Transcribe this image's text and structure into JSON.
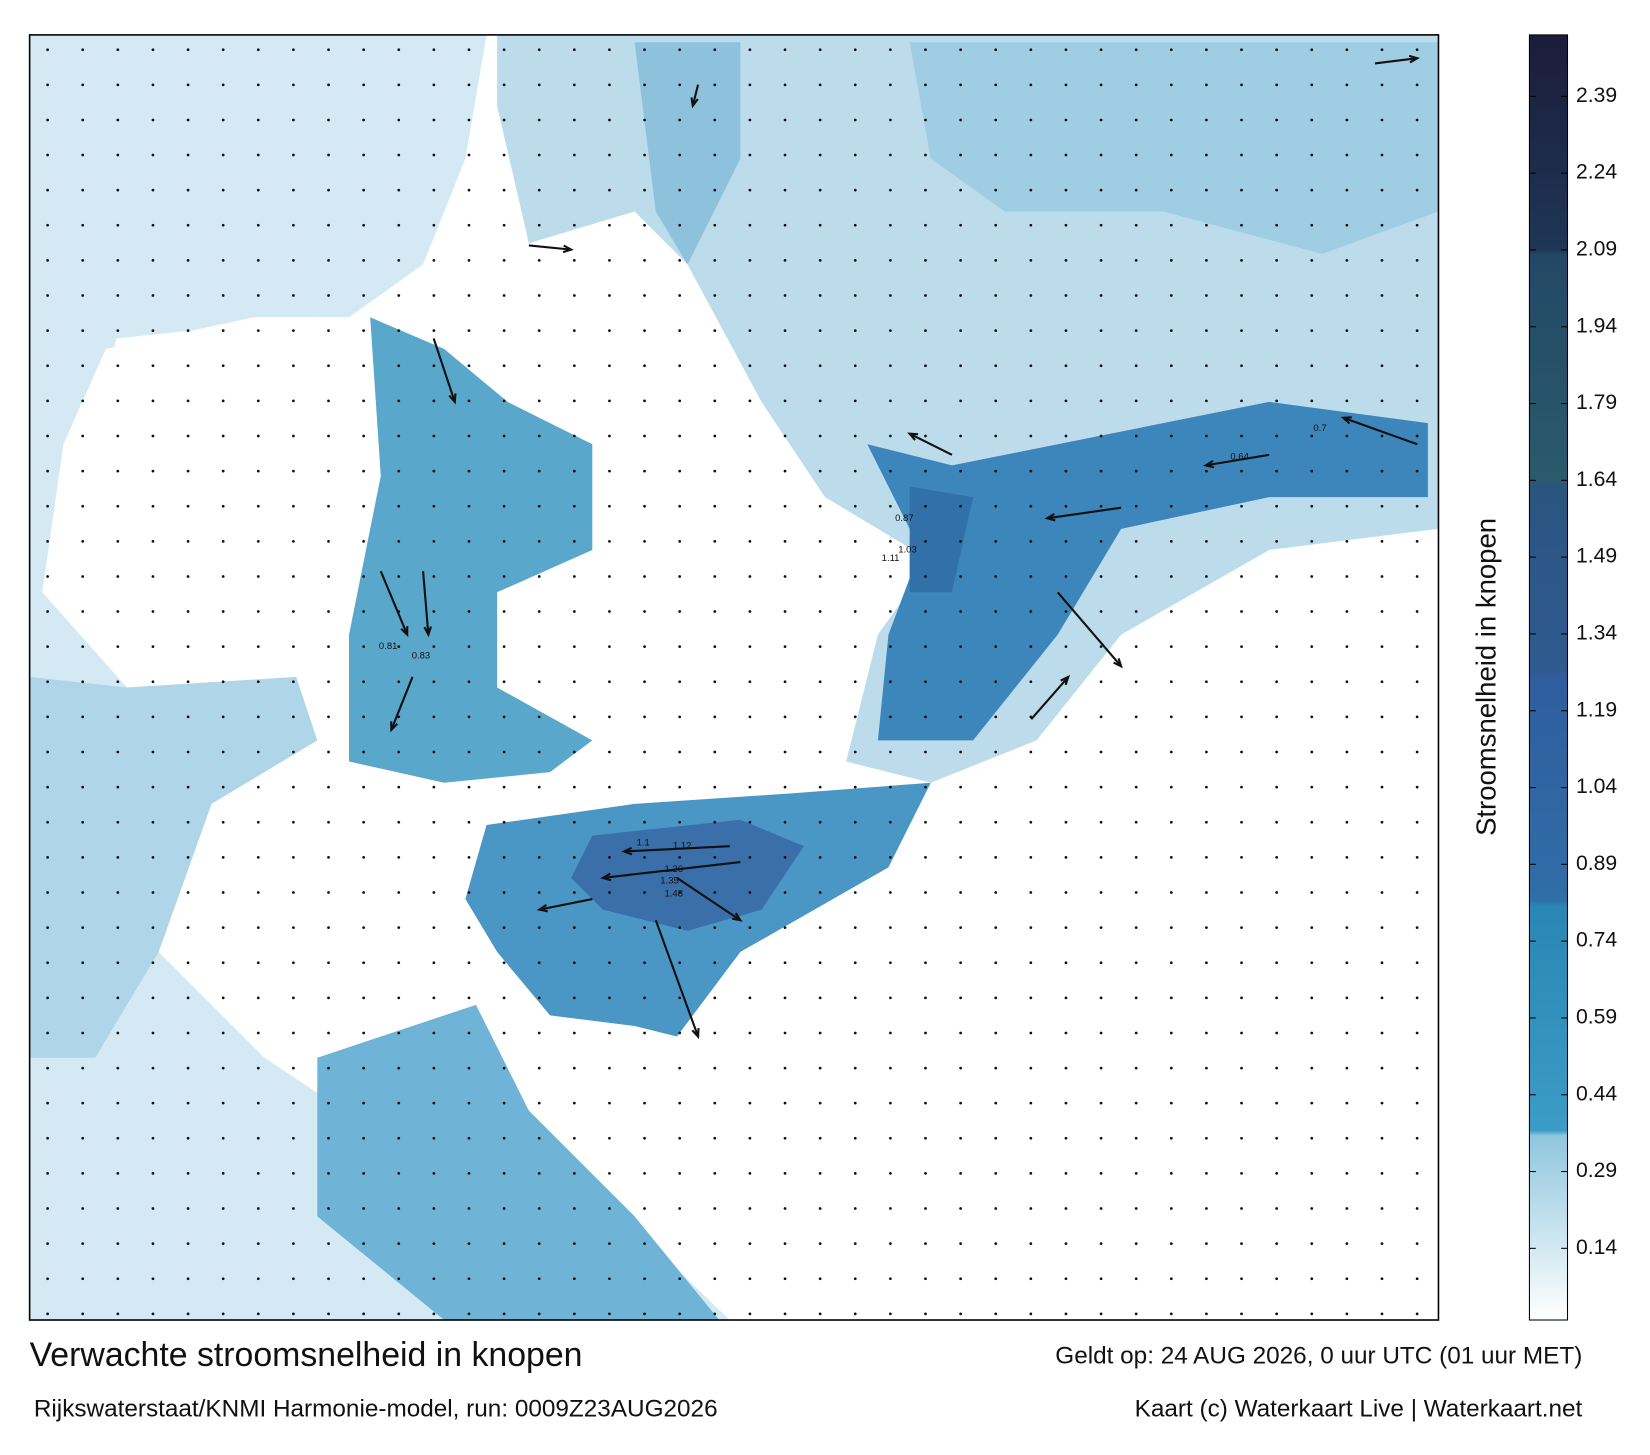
{
  "map": {
    "title": "Verwachte stroomsnelheid in knopen",
    "subtitle": "Rijkswaterstaat/KNMI Harmonie-model, run: 0009Z23AUG2026",
    "valid_time": "Geldt op: 24 AUG 2026, 0 uur UTC (01 uur MET)",
    "credit": "Kaart (c) Waterkaart Live | Waterkaart.net",
    "colorbar": {
      "label": "Stroomsnelheid in knopen",
      "lim": [
        0,
        2.51
      ],
      "ticks": [
        0.14,
        0.29,
        0.44,
        0.59,
        0.74,
        0.89,
        1.04,
        1.19,
        1.34,
        1.49,
        1.64,
        1.79,
        1.94,
        2.09,
        2.24,
        2.39
      ],
      "colorscale": [
        [
          0,
          "#ffffff"
        ],
        [
          0.36,
          "#8fc6de"
        ],
        [
          0.37,
          "#3b9cc5"
        ],
        [
          0.81,
          "#2a86b4"
        ],
        [
          0.82,
          "#2f6ea8"
        ],
        [
          1.26,
          "#2f5d9d"
        ],
        [
          1.27,
          "#2f5a90"
        ],
        [
          1.63,
          "#2a5580"
        ],
        [
          1.64,
          "#2a5a6c"
        ],
        [
          2.08,
          "#234866"
        ],
        [
          2.09,
          "#1f3657"
        ],
        [
          2.51,
          "#1b1c3a"
        ]
      ]
    },
    "current_labels": [
      "1.48",
      "1.35",
      "1.26",
      "1.12",
      "1.1",
      "1.11",
      "1.03",
      "0.87",
      "0.83",
      "0.81",
      "0.7",
      "0.64"
    ]
  }
}
